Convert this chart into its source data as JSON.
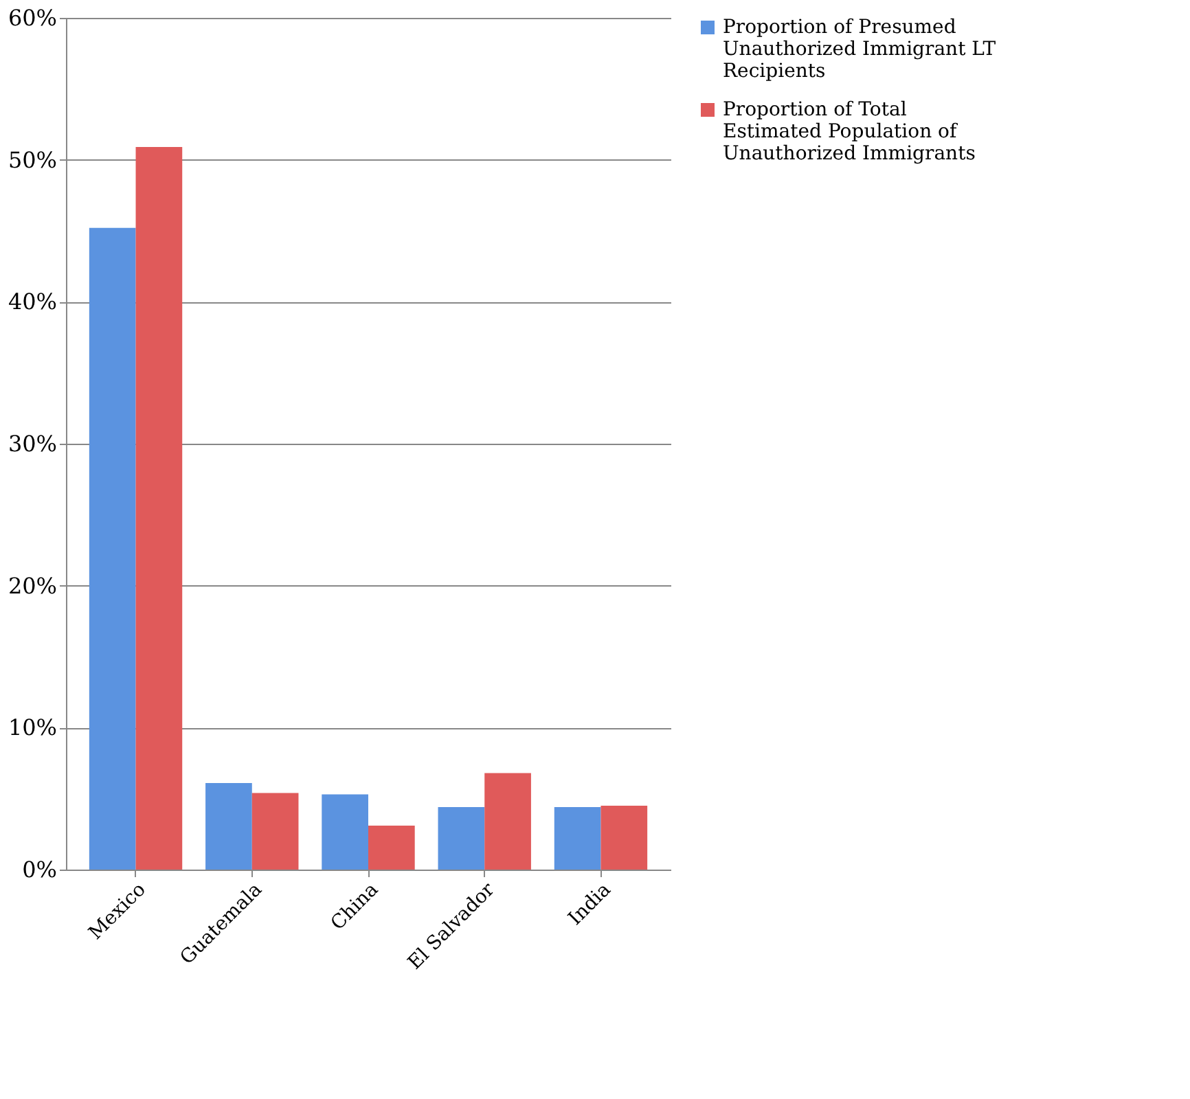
{
  "chart_data": {
    "type": "bar",
    "categories": [
      "Mexico",
      "Guatemala",
      "China",
      "El Salvador",
      "India"
    ],
    "series": [
      {
        "name": "Proportion of Presumed Unauthorized Immigrant LT Recipients",
        "color": "#5b93e0",
        "values": [
          45.2,
          6.1,
          5.3,
          4.4,
          4.4
        ]
      },
      {
        "name": "Proportion of Total Estimated Population of Unauthorized Immigrants",
        "color": "#e05a5a",
        "values": [
          50.9,
          5.4,
          3.1,
          6.8,
          4.5
        ]
      }
    ],
    "ylim": [
      0,
      60
    ],
    "yticks": [
      {
        "value": 0,
        "label": "0%"
      },
      {
        "value": 10,
        "label": "10%"
      },
      {
        "value": 20,
        "label": "20%"
      },
      {
        "value": 30,
        "label": "30%"
      },
      {
        "value": 40,
        "label": "40%"
      },
      {
        "value": 50,
        "label": "50%"
      },
      {
        "value": 60,
        "label": "60%"
      }
    ],
    "grid": "y",
    "legend": "right"
  }
}
